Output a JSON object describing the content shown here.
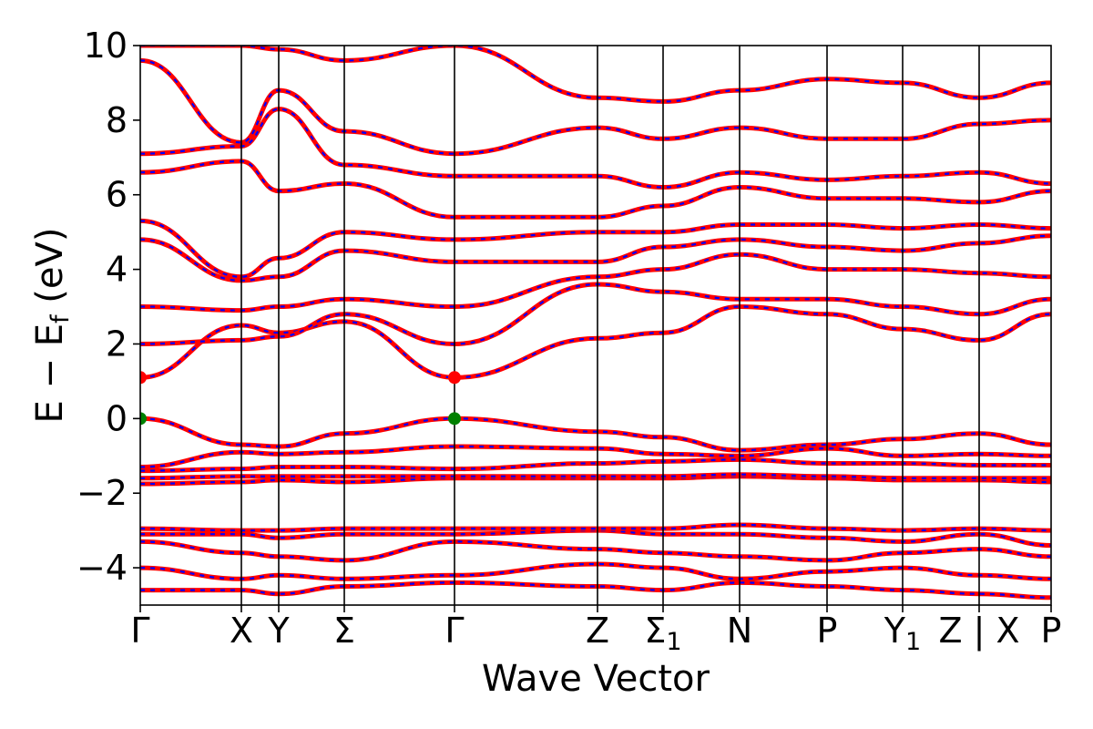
{
  "chart_data": {
    "type": "line",
    "title": "",
    "xlabel": "Wave Vector",
    "ylabel": "E − E_f (eV)",
    "ylabel_parts": {
      "main": "E − E",
      "sub": "f",
      "unit": " (eV)"
    },
    "ylim": [
      -5,
      10
    ],
    "yticks": [
      {
        "value": -4,
        "label": "−4"
      },
      {
        "value": -2,
        "label": "−2"
      },
      {
        "value": 0,
        "label": "0"
      },
      {
        "value": 2,
        "label": "2"
      },
      {
        "value": 4,
        "label": "4"
      },
      {
        "value": 6,
        "label": "6"
      },
      {
        "value": 8,
        "label": "8"
      },
      {
        "value": 10,
        "label": "10"
      }
    ],
    "xlim": [
      0,
      10
    ],
    "kpoints": [
      {
        "pos": 0.0,
        "label": "Γ",
        "sub": ""
      },
      {
        "pos": 1.11,
        "label": "X",
        "sub": ""
      },
      {
        "pos": 1.52,
        "label": "Y",
        "sub": ""
      },
      {
        "pos": 2.24,
        "label": "Σ",
        "sub": ""
      },
      {
        "pos": 3.45,
        "label": "Γ",
        "sub": ""
      },
      {
        "pos": 5.02,
        "label": "Z",
        "sub": ""
      },
      {
        "pos": 5.74,
        "label": "Σ",
        "sub": "1"
      },
      {
        "pos": 6.58,
        "label": "N",
        "sub": ""
      },
      {
        "pos": 7.54,
        "label": "P",
        "sub": ""
      },
      {
        "pos": 8.37,
        "label": "Y",
        "sub": "1"
      },
      {
        "pos": 9.21,
        "label": "Z | X",
        "sub": ""
      },
      {
        "pos": 10.0,
        "label": "P",
        "sub": ""
      }
    ],
    "segments": [
      [
        0,
        1.11
      ],
      [
        1.11,
        1.52
      ],
      [
        1.52,
        2.24
      ],
      [
        2.24,
        3.45
      ],
      [
        3.45,
        5.02
      ],
      [
        5.02,
        5.74
      ],
      [
        5.74,
        6.58
      ],
      [
        6.58,
        7.54
      ],
      [
        7.54,
        8.37
      ],
      [
        8.37,
        9.21
      ],
      [
        9.21,
        10.0
      ]
    ],
    "series": [
      {
        "name": "",
        "color": "#ff0000",
        "style": "solid"
      },
      {
        "name": "",
        "color": "#0000ff",
        "style": "dashed"
      }
    ],
    "bands": [
      [
        -4.6,
        -4.6,
        -4.7,
        -4.5,
        -4.4,
        -4.5,
        -4.6,
        -4.4,
        -4.5,
        -4.6,
        -4.7,
        -4.8
      ],
      [
        -4.0,
        -4.3,
        -4.2,
        -4.3,
        -4.2,
        -3.9,
        -4.0,
        -4.3,
        -4.1,
        -4.0,
        -4.2,
        -4.3
      ],
      [
        -3.3,
        -3.6,
        -3.7,
        -3.8,
        -3.3,
        -3.5,
        -3.6,
        -3.7,
        -3.8,
        -3.6,
        -3.5,
        -3.7
      ],
      [
        -3.1,
        -3.1,
        -3.2,
        -3.1,
        -3.1,
        -3.0,
        -3.1,
        -3.1,
        -3.2,
        -3.3,
        -3.1,
        -3.4
      ],
      [
        -2.95,
        -3.0,
        -3.0,
        -2.95,
        -2.95,
        -2.95,
        -2.95,
        -2.85,
        -2.95,
        -3.0,
        -2.95,
        -3.0
      ],
      [
        -1.75,
        -1.7,
        -1.65,
        -1.7,
        -1.6,
        -1.6,
        -1.6,
        -1.55,
        -1.6,
        -1.65,
        -1.65,
        -1.7
      ],
      [
        -1.6,
        -1.55,
        -1.55,
        -1.55,
        -1.55,
        -1.55,
        -1.55,
        -1.5,
        -1.55,
        -1.6,
        -1.6,
        -1.6
      ],
      [
        -1.4,
        -1.35,
        -1.3,
        -1.3,
        -1.35,
        -1.2,
        -1.15,
        -1.1,
        -1.2,
        -1.2,
        -1.25,
        -1.25
      ],
      [
        -1.3,
        -0.9,
        -0.95,
        -0.9,
        -0.75,
        -0.8,
        -0.95,
        -1.0,
        -0.8,
        -1.0,
        -0.95,
        -1.0
      ],
      [
        0.0,
        -0.7,
        -0.75,
        -0.4,
        0.0,
        -0.35,
        -0.5,
        -0.85,
        -0.7,
        -0.55,
        -0.4,
        -0.7
      ],
      [
        1.1,
        2.5,
        2.3,
        2.6,
        1.1,
        2.15,
        2.3,
        3.0,
        2.8,
        2.4,
        2.1,
        2.8
      ],
      [
        2.0,
        2.1,
        2.2,
        2.8,
        2.0,
        3.6,
        3.4,
        3.2,
        3.2,
        3.0,
        2.8,
        3.2
      ],
      [
        3.0,
        2.9,
        3.0,
        3.2,
        3.0,
        3.8,
        4.0,
        4.4,
        4.0,
        4.0,
        3.9,
        3.8
      ],
      [
        4.8,
        3.7,
        3.8,
        4.5,
        4.2,
        4.2,
        4.6,
        4.8,
        4.6,
        4.5,
        4.7,
        4.9
      ],
      [
        5.3,
        3.8,
        4.3,
        5.0,
        4.8,
        5.0,
        5.0,
        5.2,
        5.2,
        5.1,
        5.2,
        5.1
      ],
      [
        6.6,
        6.9,
        6.1,
        6.3,
        5.4,
        5.4,
        5.7,
        6.2,
        5.9,
        5.9,
        5.8,
        6.1
      ],
      [
        7.1,
        7.3,
        8.3,
        6.8,
        6.5,
        6.5,
        6.2,
        6.6,
        6.4,
        6.5,
        6.6,
        6.3
      ],
      [
        9.6,
        7.4,
        8.8,
        7.7,
        7.1,
        7.8,
        7.5,
        7.8,
        7.5,
        7.5,
        7.9,
        8.0
      ],
      [
        10.0,
        10.0,
        9.9,
        9.6,
        10.0,
        8.6,
        8.5,
        8.8,
        9.1,
        9.0,
        8.6,
        9.0
      ]
    ],
    "markers": [
      {
        "x": 0.0,
        "y": 0.0,
        "color": "#008000"
      },
      {
        "x": 3.45,
        "y": 0.0,
        "color": "#008000"
      },
      {
        "x": 0.0,
        "y": 1.1,
        "color": "#ff0000"
      },
      {
        "x": 3.45,
        "y": 1.1,
        "color": "#ff0000"
      }
    ],
    "grid": false,
    "legend": "none"
  }
}
